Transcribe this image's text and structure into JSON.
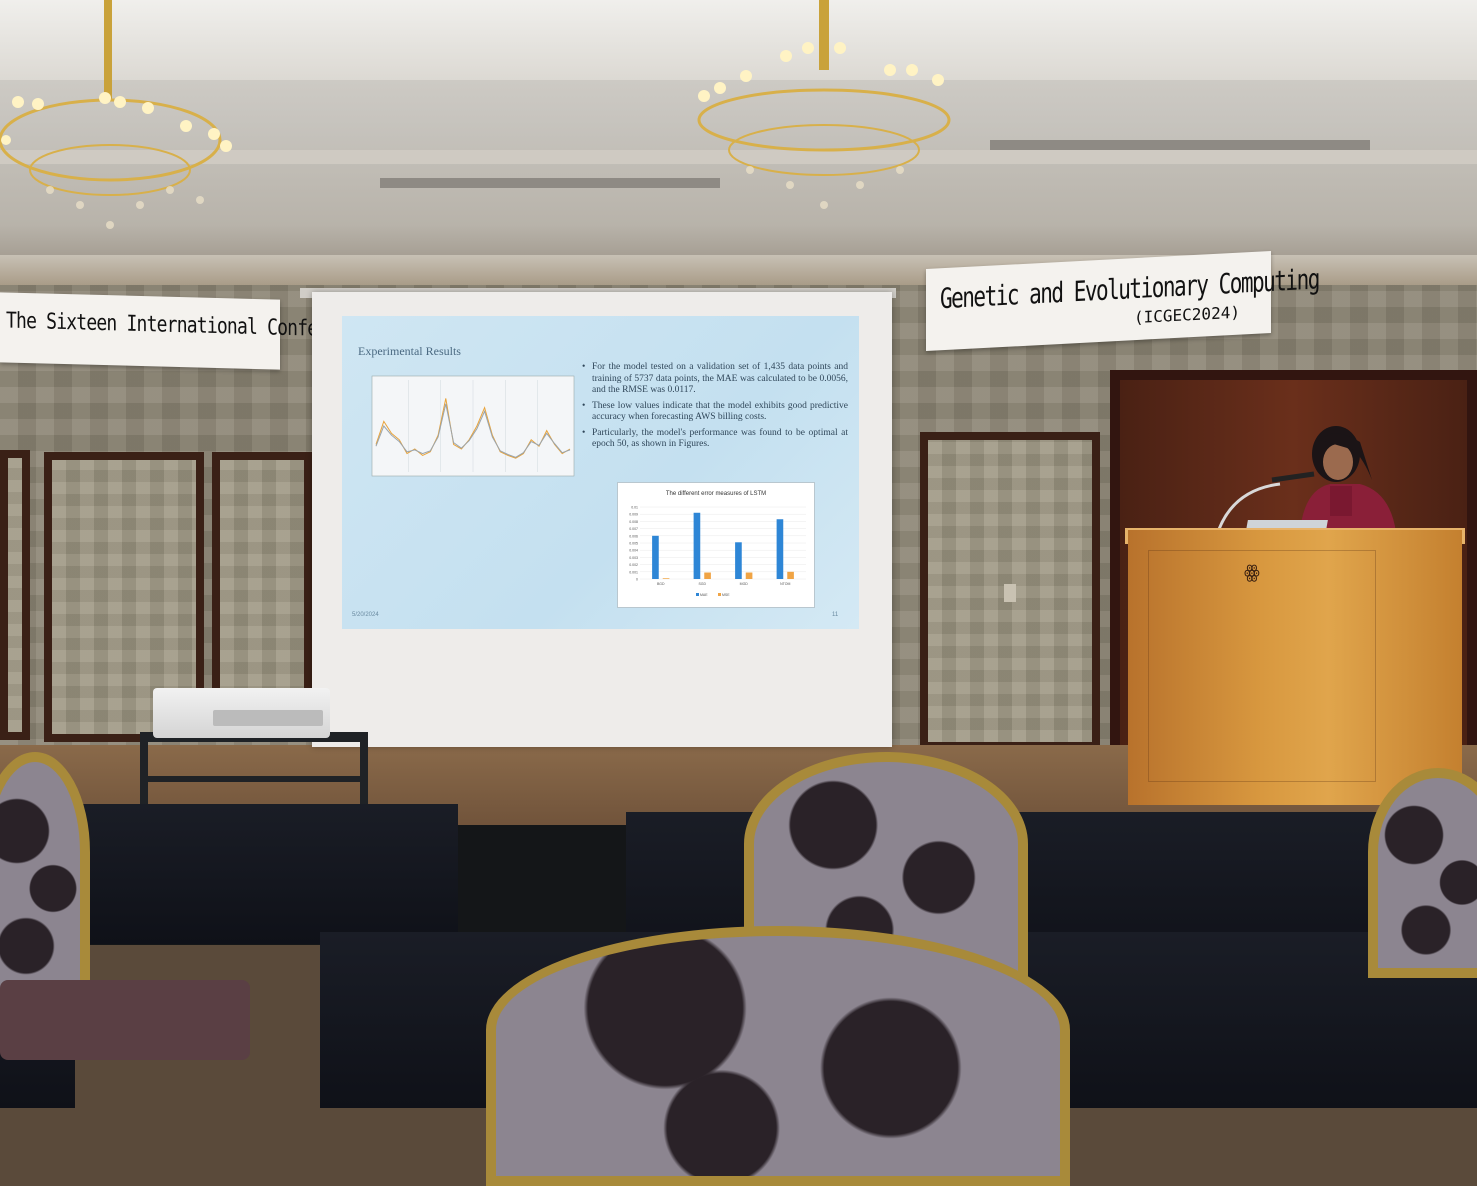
{
  "banners": {
    "left": "The Sixteen International Conference On",
    "right_line1": "Genetic and Evolutionary Computing",
    "right_line2": "(ICGEC2024)"
  },
  "slide": {
    "title": "Experimental Results",
    "bullets": [
      "For the model tested on a validation set of 1,435 data points and training of 5737 data points, the MAE was calculated to be 0.0056, and the RMSE was 0.0117.",
      "These low values indicate that the model exhibits good predictive accuracy when forecasting AWS billing costs.",
      "Particularly, the model's performance was found to be optimal at epoch 50, as shown in Figures."
    ],
    "date": "5/20/2024",
    "page_number": "11"
  },
  "chart_data": [
    {
      "type": "line",
      "series": [
        {
          "values": [
            0.3,
            0.55,
            0.42,
            0.35,
            0.2,
            0.25,
            0.18,
            0.22,
            0.4,
            0.8,
            0.3,
            0.25,
            0.35,
            0.5,
            0.7,
            0.4,
            0.22,
            0.18,
            0.15,
            0.2,
            0.35,
            0.28,
            0.45,
            0.3,
            0.2,
            0.25
          ],
          "color": "#e8a33a"
        },
        {
          "values": [
            0.28,
            0.5,
            0.4,
            0.33,
            0.22,
            0.24,
            0.2,
            0.23,
            0.38,
            0.74,
            0.32,
            0.26,
            0.34,
            0.47,
            0.66,
            0.38,
            0.23,
            0.19,
            0.16,
            0.21,
            0.33,
            0.29,
            0.42,
            0.31,
            0.21,
            0.24
          ],
          "color": "#9aa4ac"
        }
      ],
      "grid": true
    },
    {
      "type": "bar",
      "title": "The different error measures of LSTM",
      "categories": [
        "BGD",
        "SGD",
        "MGD",
        "NTOM"
      ],
      "series": [
        {
          "name": "MAE",
          "values": [
            0.006,
            0.0092,
            0.0051,
            0.0083
          ],
          "color": "#2e86d6"
        },
        {
          "name": "MSE",
          "values": [
            0.0001,
            0.0009,
            0.0009,
            0.001
          ],
          "color": "#f0a445"
        }
      ],
      "y_ticks": [
        "0.01",
        "0.009",
        "0.008",
        "0.007",
        "0.006",
        "0.005",
        "0.004",
        "0.003",
        "0.002",
        "0.001",
        "0"
      ],
      "ylim": [
        0,
        0.01
      ],
      "grid": true,
      "legend": "bottom"
    }
  ],
  "podium": {
    "emblem": "ꙮ"
  },
  "colors": {
    "slide_bg": "#cfe6f3",
    "podium": "#d8983f",
    "banner": "#f4f2ee"
  }
}
